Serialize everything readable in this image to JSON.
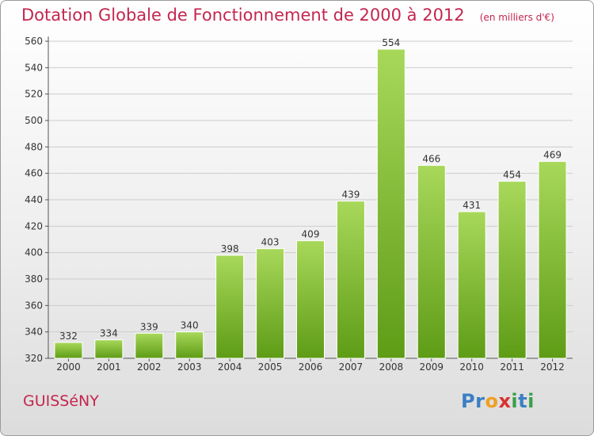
{
  "title": "Dotation Globale de Fonctionnement de 2000 à 2012",
  "unit_note": "(en milliers d'€)",
  "commune": "GUISSéNY",
  "logo": {
    "letters": [
      "P",
      "r",
      "o",
      "x",
      "i",
      "t",
      "i"
    ],
    "colors": [
      "#3a7fc4",
      "#3a7fc4",
      "#f0a020",
      "#d8322f",
      "#3aa04a",
      "#3a7fc4",
      "#3aa04a"
    ]
  },
  "colors": {
    "title": "#c4264f",
    "bar_light": "#a8d85a",
    "bar_dark": "#5e9c16",
    "grid": "#cccccc"
  },
  "chart_data": {
    "type": "bar",
    "categories": [
      "2000",
      "2001",
      "2002",
      "2003",
      "2004",
      "2005",
      "2006",
      "2007",
      "2008",
      "2009",
      "2010",
      "2011",
      "2012"
    ],
    "values": [
      332,
      334,
      339,
      340,
      398,
      403,
      409,
      439,
      554,
      466,
      431,
      454,
      469
    ],
    "ylim": [
      320,
      560
    ],
    "yticks": [
      320,
      340,
      360,
      380,
      400,
      420,
      440,
      460,
      480,
      500,
      520,
      540,
      560
    ],
    "grid": true,
    "xlabel": "",
    "ylabel": ""
  }
}
